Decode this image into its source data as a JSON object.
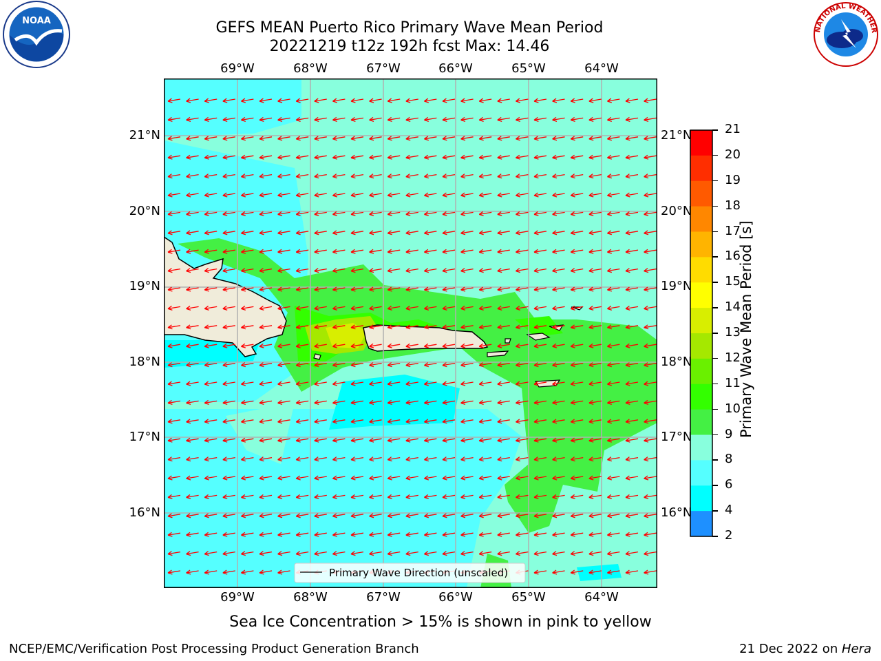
{
  "title_line1": "GEFS MEAN Puerto Rico Primary Wave Mean Period",
  "title_line2": "20221219 t12z 192h fcst   Max: 14.46",
  "lon_labels": [
    "69°W",
    "68°W",
    "67°W",
    "66°W",
    "65°W",
    "64°W"
  ],
  "lat_labels": [
    "21°N",
    "20°N",
    "19°N",
    "18°N",
    "17°N",
    "16°N"
  ],
  "legend_label": "Primary Wave Direction (unscaled)",
  "colorbar": {
    "label": "Primary Wave Mean Period [s]",
    "ticks": [
      "21",
      "20",
      "19",
      "18",
      "17",
      "16",
      "15",
      "14",
      "13",
      "12",
      "11",
      "10",
      "9",
      "8",
      "6",
      "4",
      "2"
    ],
    "colors": [
      "#ff0000",
      "#ff2e00",
      "#ff5a00",
      "#ff8700",
      "#ffb400",
      "#ffdc00",
      "#ffff00",
      "#d8ee00",
      "#a5e800",
      "#6af000",
      "#33ff00",
      "#44f044",
      "#88ffdd",
      "#55ffff",
      "#00ffff",
      "#1e90ff",
      "#0000ff"
    ]
  },
  "map_colors": {
    "land": "#f0ecda",
    "sea_8": "#55ffff",
    "sea_6": "#00ffff",
    "sea_9": "#88ffdd",
    "period_10": "#44f044",
    "period_12": "#33ff00",
    "period_13": "#a5e800",
    "period_14": "#d8ee00",
    "arrow": "#ff0000",
    "grid": "#b0b0b0"
  },
  "subtitle": "Sea Ice Concentration > 15% is shown in pink to yellow",
  "footer_left": "NCEP/EMC/Verification Post Processing Product Generation Branch",
  "footer_date": "21 Dec 2022 on ",
  "footer_host": "Hera",
  "logos": {
    "left": "noaa-logo",
    "right": "nws-logo"
  },
  "logo_text": {
    "noaa": "NOAA",
    "nws": "NATIONAL WEATHER SERVICE"
  }
}
